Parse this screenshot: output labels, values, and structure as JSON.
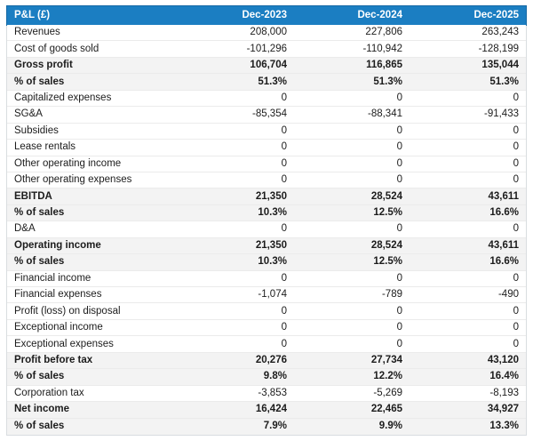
{
  "colors": {
    "header_bg": "#1b7ec2",
    "header_border": "#1568a4",
    "header_text": "#ffffff",
    "emphasis_bg": "#f3f3f3"
  },
  "chart_data": {
    "type": "table",
    "title": "P&L (£)",
    "columns": [
      "Dec-2023",
      "Dec-2024",
      "Dec-2025"
    ],
    "rows": [
      {
        "label": "Revenues",
        "values": [
          "208,000",
          "227,806",
          "263,243"
        ],
        "bold": false
      },
      {
        "label": "Cost of goods sold",
        "values": [
          "-101,296",
          "-110,942",
          "-128,199"
        ],
        "bold": false
      },
      {
        "label": "Gross profit",
        "values": [
          "106,704",
          "116,865",
          "135,044"
        ],
        "bold": true
      },
      {
        "label": "% of sales",
        "values": [
          "51.3%",
          "51.3%",
          "51.3%"
        ],
        "bold": true
      },
      {
        "label": "Capitalized expenses",
        "values": [
          "0",
          "0",
          "0"
        ],
        "bold": false
      },
      {
        "label": "SG&A",
        "values": [
          "-85,354",
          "-88,341",
          "-91,433"
        ],
        "bold": false
      },
      {
        "label": "Subsidies",
        "values": [
          "0",
          "0",
          "0"
        ],
        "bold": false
      },
      {
        "label": "Lease rentals",
        "values": [
          "0",
          "0",
          "0"
        ],
        "bold": false
      },
      {
        "label": "Other operating income",
        "values": [
          "0",
          "0",
          "0"
        ],
        "bold": false
      },
      {
        "label": "Other operating expenses",
        "values": [
          "0",
          "0",
          "0"
        ],
        "bold": false
      },
      {
        "label": "EBITDA",
        "values": [
          "21,350",
          "28,524",
          "43,611"
        ],
        "bold": true
      },
      {
        "label": "% of sales",
        "values": [
          "10.3%",
          "12.5%",
          "16.6%"
        ],
        "bold": true
      },
      {
        "label": "D&A",
        "values": [
          "0",
          "0",
          "0"
        ],
        "bold": false
      },
      {
        "label": "Operating income",
        "values": [
          "21,350",
          "28,524",
          "43,611"
        ],
        "bold": true
      },
      {
        "label": "% of sales",
        "values": [
          "10.3%",
          "12.5%",
          "16.6%"
        ],
        "bold": true
      },
      {
        "label": "Financial income",
        "values": [
          "0",
          "0",
          "0"
        ],
        "bold": false
      },
      {
        "label": "Financial expenses",
        "values": [
          "-1,074",
          "-789",
          "-490"
        ],
        "bold": false
      },
      {
        "label": "Profit (loss) on disposal",
        "values": [
          "0",
          "0",
          "0"
        ],
        "bold": false
      },
      {
        "label": "Exceptional income",
        "values": [
          "0",
          "0",
          "0"
        ],
        "bold": false
      },
      {
        "label": "Exceptional expenses",
        "values": [
          "0",
          "0",
          "0"
        ],
        "bold": false
      },
      {
        "label": "Profit before tax",
        "values": [
          "20,276",
          "27,734",
          "43,120"
        ],
        "bold": true
      },
      {
        "label": "% of sales",
        "values": [
          "9.8%",
          "12.2%",
          "16.4%"
        ],
        "bold": true
      },
      {
        "label": "Corporation tax",
        "values": [
          "-3,853",
          "-5,269",
          "-8,193"
        ],
        "bold": false
      },
      {
        "label": "Net income",
        "values": [
          "16,424",
          "22,465",
          "34,927"
        ],
        "bold": true
      },
      {
        "label": "% of sales",
        "values": [
          "7.9%",
          "9.9%",
          "13.3%"
        ],
        "bold": true
      }
    ]
  }
}
